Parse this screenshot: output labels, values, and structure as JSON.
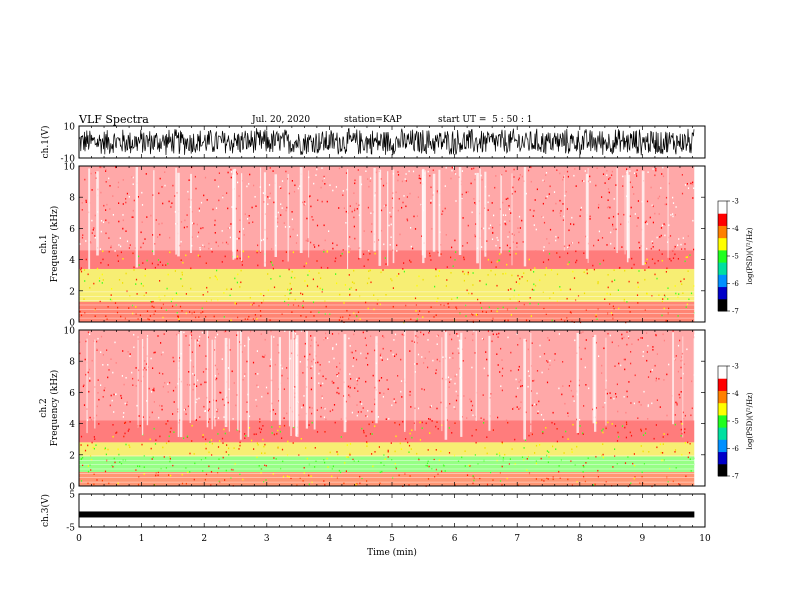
{
  "header": {
    "title": "VLF Spectra",
    "date": "Jul. 20, 2020",
    "station": "station=KAP",
    "start_ut": "start UT =  5 : 50 : 1"
  },
  "colorbar": {
    "ticks": [
      "-3",
      "-4",
      "-5",
      "-6",
      "-7"
    ],
    "label": "log(PSD)(V²/Hz)",
    "colors": [
      "#000000",
      "#0000c8",
      "#0090ff",
      "#00e0a0",
      "#20ff20",
      "#ffff00",
      "#ff8000",
      "#ff0000",
      "#ffffff"
    ]
  },
  "chart_data": [
    {
      "type": "line",
      "panel": "ch1-waveform",
      "ylabel": "ch.1(V)",
      "ylim": [
        -10,
        10
      ],
      "y_ticks": [
        "10",
        "-10"
      ],
      "x_range_min": [
        0,
        9.83
      ],
      "description_values": {
        "typical_amplitude_V": [
          -6,
          6
        ]
      }
    },
    {
      "type": "heatmap",
      "panel": "ch1-spectrogram",
      "ylabel": "ch.1\nFrequency (kHz)",
      "ylim": [
        0,
        10
      ],
      "y_ticks": [
        "10",
        "8",
        "6",
        "4",
        "2",
        "0"
      ],
      "x_range_min": [
        0,
        9.83
      ],
      "z_range_log": [
        -7,
        -3
      ],
      "bands": [
        {
          "fmin_khz": 0,
          "fmax_khz": 1.3,
          "color": "#ff2000"
        },
        {
          "fmin_khz": 1.3,
          "fmax_khz": 3.4,
          "color": "#f0e000"
        },
        {
          "fmin_khz": 3.4,
          "fmax_khz": 4.6,
          "color": "#ff1010"
        },
        {
          "fmin_khz": 4.6,
          "fmax_khz": 10,
          "color": "#ff6060"
        }
      ]
    },
    {
      "type": "heatmap",
      "panel": "ch2-spectrogram",
      "ylabel": "ch.2\nFrequency (kHz)",
      "ylim": [
        0,
        10
      ],
      "y_ticks": [
        "10",
        "8",
        "6",
        "4",
        "2",
        "0"
      ],
      "x_range_min": [
        0,
        9.83
      ],
      "z_range_log": [
        -7,
        -3
      ],
      "bands": [
        {
          "fmin_khz": 0,
          "fmax_khz": 0.9,
          "color": "#ff4000"
        },
        {
          "fmin_khz": 0.9,
          "fmax_khz": 1.9,
          "color": "#40ff20"
        },
        {
          "fmin_khz": 1.9,
          "fmax_khz": 2.8,
          "color": "#f0e000"
        },
        {
          "fmin_khz": 2.8,
          "fmax_khz": 4.2,
          "color": "#ff1010"
        },
        {
          "fmin_khz": 4.2,
          "fmax_khz": 10,
          "color": "#ff6060"
        }
      ]
    },
    {
      "type": "line",
      "panel": "ch3-waveform",
      "ylabel": "ch.3(V)",
      "ylim": [
        -5,
        5
      ],
      "y_ticks": [
        "5",
        "-5"
      ],
      "x_range_min": [
        0,
        9.83
      ],
      "description_values": {
        "level_V": -1.2
      }
    }
  ],
  "xaxis": {
    "label": "Time (min)",
    "ticks": [
      "0",
      "1",
      "2",
      "3",
      "4",
      "5",
      "6",
      "7",
      "8",
      "9",
      "10"
    ],
    "range": [
      0,
      10
    ]
  }
}
